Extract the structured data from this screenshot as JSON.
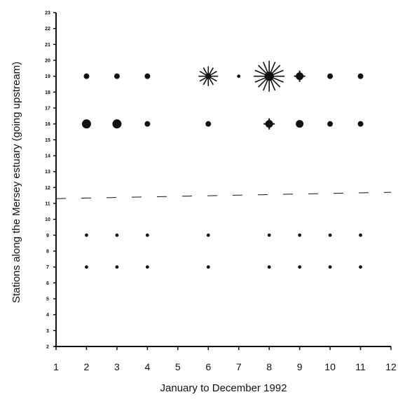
{
  "chart_data": {
    "type": "scatter",
    "title": "",
    "xlabel": "January to December 1992",
    "ylabel": "Stations along the Mersey estuary (going upstream)",
    "xlim": [
      1,
      12
    ],
    "ylim": [
      2,
      23
    ],
    "x_ticks": [
      "1",
      "2",
      "3",
      "4",
      "5",
      "6",
      "7",
      "8",
      "9",
      "10",
      "11",
      "12"
    ],
    "y_ticks": [
      "2",
      "3",
      "4",
      "5",
      "6",
      "7",
      "8",
      "9",
      "10",
      "11",
      "12",
      "13",
      "14",
      "15",
      "16",
      "17",
      "18",
      "19",
      "20",
      "21",
      "22",
      "23"
    ],
    "grid": false,
    "legend": "none",
    "points": [
      {
        "x": 2,
        "y": 19,
        "size": "small"
      },
      {
        "x": 3,
        "y": 19,
        "size": "small"
      },
      {
        "x": 4,
        "y": 19,
        "size": "small"
      },
      {
        "x": 6,
        "y": 19,
        "size": "burst-medium"
      },
      {
        "x": 7,
        "y": 19,
        "size": "tiny"
      },
      {
        "x": 8,
        "y": 19,
        "size": "burst-large"
      },
      {
        "x": 9,
        "y": 19,
        "size": "cross"
      },
      {
        "x": 10,
        "y": 19,
        "size": "small"
      },
      {
        "x": 11,
        "y": 19,
        "size": "small"
      },
      {
        "x": 2,
        "y": 16,
        "size": "large"
      },
      {
        "x": 3,
        "y": 16,
        "size": "large"
      },
      {
        "x": 4,
        "y": 16,
        "size": "small"
      },
      {
        "x": 6,
        "y": 16,
        "size": "small"
      },
      {
        "x": 8,
        "y": 16,
        "size": "cross"
      },
      {
        "x": 9,
        "y": 16,
        "size": "medium"
      },
      {
        "x": 10,
        "y": 16,
        "size": "small"
      },
      {
        "x": 11,
        "y": 16,
        "size": "small"
      },
      {
        "x": 2,
        "y": 9,
        "size": "tiny"
      },
      {
        "x": 3,
        "y": 9,
        "size": "tiny"
      },
      {
        "x": 4,
        "y": 9,
        "size": "tiny"
      },
      {
        "x": 6,
        "y": 9,
        "size": "tiny"
      },
      {
        "x": 8,
        "y": 9,
        "size": "tiny"
      },
      {
        "x": 9,
        "y": 9,
        "size": "tiny"
      },
      {
        "x": 10,
        "y": 9,
        "size": "tiny"
      },
      {
        "x": 11,
        "y": 9,
        "size": "tiny"
      },
      {
        "x": 2,
        "y": 7,
        "size": "tiny"
      },
      {
        "x": 3,
        "y": 7,
        "size": "tiny"
      },
      {
        "x": 4,
        "y": 7,
        "size": "tiny"
      },
      {
        "x": 6,
        "y": 7,
        "size": "tiny"
      },
      {
        "x": 8,
        "y": 7,
        "size": "tiny"
      },
      {
        "x": 9,
        "y": 7,
        "size": "tiny"
      },
      {
        "x": 10,
        "y": 7,
        "size": "tiny"
      },
      {
        "x": 11,
        "y": 7,
        "size": "tiny"
      }
    ],
    "dashed_line": [
      {
        "x": 1,
        "y": 11.3
      },
      {
        "x": 12,
        "y": 11.7
      }
    ],
    "colors": {
      "ink": "#111111",
      "background": "#ffffff"
    }
  }
}
